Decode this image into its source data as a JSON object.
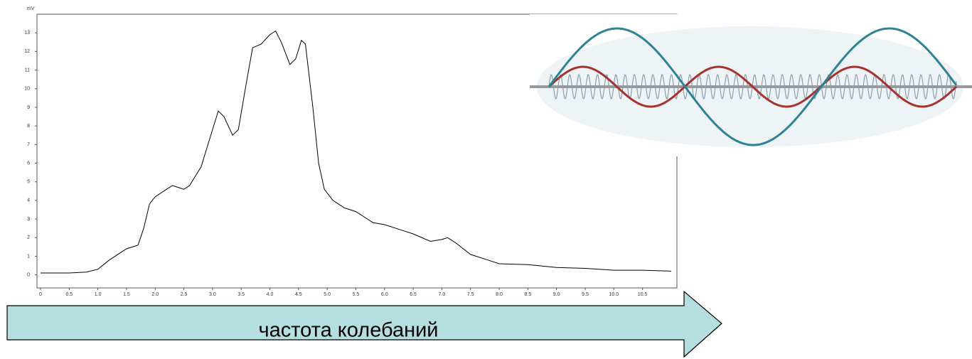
{
  "chart_data": {
    "type": "line",
    "y_label": "mV",
    "color": "#000000",
    "x": [
      0,
      0.5,
      0.8,
      1.0,
      1.2,
      1.5,
      1.7,
      1.8,
      1.9,
      2.0,
      2.2,
      2.3,
      2.5,
      2.6,
      2.8,
      3.0,
      3.1,
      3.2,
      3.35,
      3.45,
      3.6,
      3.7,
      3.85,
      4.0,
      4.1,
      4.2,
      4.35,
      4.45,
      4.55,
      4.62,
      4.75,
      4.85,
      4.95,
      5.1,
      5.3,
      5.5,
      5.8,
      6.0,
      6.3,
      6.5,
      6.8,
      7.0,
      7.1,
      7.25,
      7.5,
      7.8,
      8.0,
      8.5,
      9.0,
      9.5,
      10.0,
      10.5,
      11.0
    ],
    "values": [
      0.1,
      0.1,
      0.15,
      0.3,
      0.8,
      1.4,
      1.6,
      2.5,
      3.8,
      4.2,
      4.6,
      4.8,
      4.6,
      4.8,
      5.8,
      7.8,
      8.8,
      8.5,
      7.5,
      7.8,
      10.5,
      12.2,
      12.4,
      12.9,
      13.1,
      12.5,
      11.3,
      11.6,
      12.6,
      12.4,
      9.0,
      6.0,
      4.6,
      4.0,
      3.6,
      3.4,
      2.8,
      2.7,
      2.4,
      2.2,
      1.8,
      1.9,
      2.0,
      1.7,
      1.1,
      0.8,
      0.6,
      0.55,
      0.4,
      0.35,
      0.25,
      0.25,
      0.2
    ],
    "xlim": [
      0,
      11.1
    ],
    "ylim": [
      -0.7,
      14
    ],
    "xticks": [
      0,
      0.5,
      {
        "value": 1,
        "label": "1.0"
      },
      1.5,
      {
        "value": 2,
        "label": "2.0"
      },
      2.5,
      {
        "value": 3,
        "label": "3.0"
      },
      3.5,
      {
        "value": 4,
        "label": "4.0"
      },
      4.5,
      {
        "value": 5,
        "label": "5.0"
      },
      5.5,
      {
        "value": 6,
        "label": "6.0"
      },
      6.5,
      {
        "value": 7,
        "label": "7.0"
      },
      7.5,
      {
        "value": 8,
        "label": "8.0"
      },
      8.5,
      {
        "value": 9,
        "label": "9.0"
      },
      9.5,
      {
        "value": 10,
        "label": "10.0"
      },
      10.5
    ],
    "yticks": [
      0,
      1,
      2,
      3,
      4,
      5,
      6,
      7,
      8,
      9,
      10,
      11,
      12,
      13
    ]
  },
  "arrow_label": "частота колебаний"
}
